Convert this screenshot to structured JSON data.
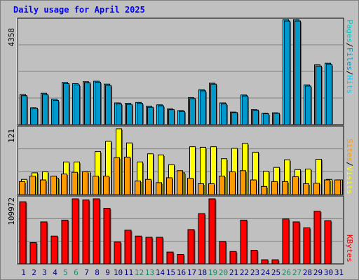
{
  "title": "Daily usage for April 2025",
  "colors": {
    "hits": "#00ccff",
    "files": "#0099cc",
    "pages": "#00cccc",
    "visits": "#ffff00",
    "sites": "#ff9900",
    "kbytes": "#ff0000",
    "weekend": "#1a8a66",
    "weekday": "#000080"
  },
  "chart_data": [
    {
      "type": "bar",
      "name": "hits-files-pages",
      "ymax_label": "4358",
      "ymax": 4358,
      "legend": [
        "Pages",
        "Files",
        "Hits"
      ],
      "categories": [
        "1",
        "2",
        "3",
        "4",
        "5",
        "6",
        "7",
        "8",
        "9",
        "10",
        "11",
        "12",
        "13",
        "14",
        "15",
        "16",
        "17",
        "18",
        "19",
        "20",
        "21",
        "22",
        "23",
        "24",
        "25",
        "26",
        "27",
        "28",
        "29",
        "30",
        "31"
      ],
      "weekend_days": [
        "5",
        "6",
        "12",
        "13",
        "19",
        "20",
        "26",
        "27"
      ],
      "series": [
        {
          "name": "Hits",
          "values": [
            1250,
            700,
            1300,
            1050,
            1750,
            1700,
            1780,
            1800,
            1680,
            900,
            880,
            920,
            760,
            820,
            650,
            580,
            1120,
            1450,
            1720,
            900,
            520,
            1230,
            620,
            470,
            490,
            4358,
            4358,
            1650,
            2480,
            2550,
            0
          ]
        },
        {
          "name": "Files",
          "values": [
            1200,
            680,
            1250,
            1000,
            1700,
            1650,
            1740,
            1760,
            1630,
            860,
            840,
            880,
            720,
            780,
            620,
            550,
            1080,
            1400,
            1680,
            860,
            500,
            1190,
            600,
            450,
            470,
            4300,
            4300,
            1600,
            2430,
            2500,
            0
          ]
        },
        {
          "name": "Pages",
          "values": [
            0,
            0,
            0,
            0,
            0,
            0,
            0,
            0,
            0,
            0,
            0,
            0,
            0,
            0,
            0,
            0,
            0,
            0,
            0,
            0,
            0,
            0,
            0,
            0,
            0,
            0,
            0,
            0,
            0,
            0,
            0
          ]
        }
      ]
    },
    {
      "type": "bar",
      "name": "visits-sites",
      "ymax_label": "121",
      "ymax": 121,
      "legend": [
        "Sites",
        "Visits"
      ],
      "series": [
        {
          "name": "Visits",
          "values": [
            28,
            40,
            42,
            30,
            60,
            60,
            42,
            79,
            98,
            121,
            95,
            60,
            75,
            73,
            55,
            40,
            88,
            87,
            88,
            66,
            85,
            94,
            78,
            43,
            50,
            64,
            46,
            47,
            65,
            28,
            27
          ]
        },
        {
          "name": "Sites",
          "values": [
            24,
            34,
            27,
            34,
            38,
            41,
            42,
            34,
            34,
            68,
            69,
            25,
            28,
            22,
            31,
            44,
            30,
            20,
            20,
            34,
            42,
            44,
            27,
            15,
            24,
            24,
            33,
            20,
            21,
            27,
            27
          ]
        }
      ]
    },
    {
      "type": "bar",
      "name": "kbytes",
      "ymax_label": "109972",
      "ymax": 109972,
      "legend": [
        "KBytes"
      ],
      "series": [
        {
          "name": "KBytes",
          "values": [
            105000,
            36000,
            71000,
            47000,
            74000,
            109972,
            108000,
            109972,
            94000,
            37000,
            57000,
            47000,
            45000,
            45000,
            20000,
            16000,
            58000,
            85000,
            109972,
            38000,
            21000,
            74000,
            23000,
            7000,
            7000,
            76000,
            71000,
            61000,
            89000,
            73000,
            0
          ]
        }
      ]
    }
  ]
}
